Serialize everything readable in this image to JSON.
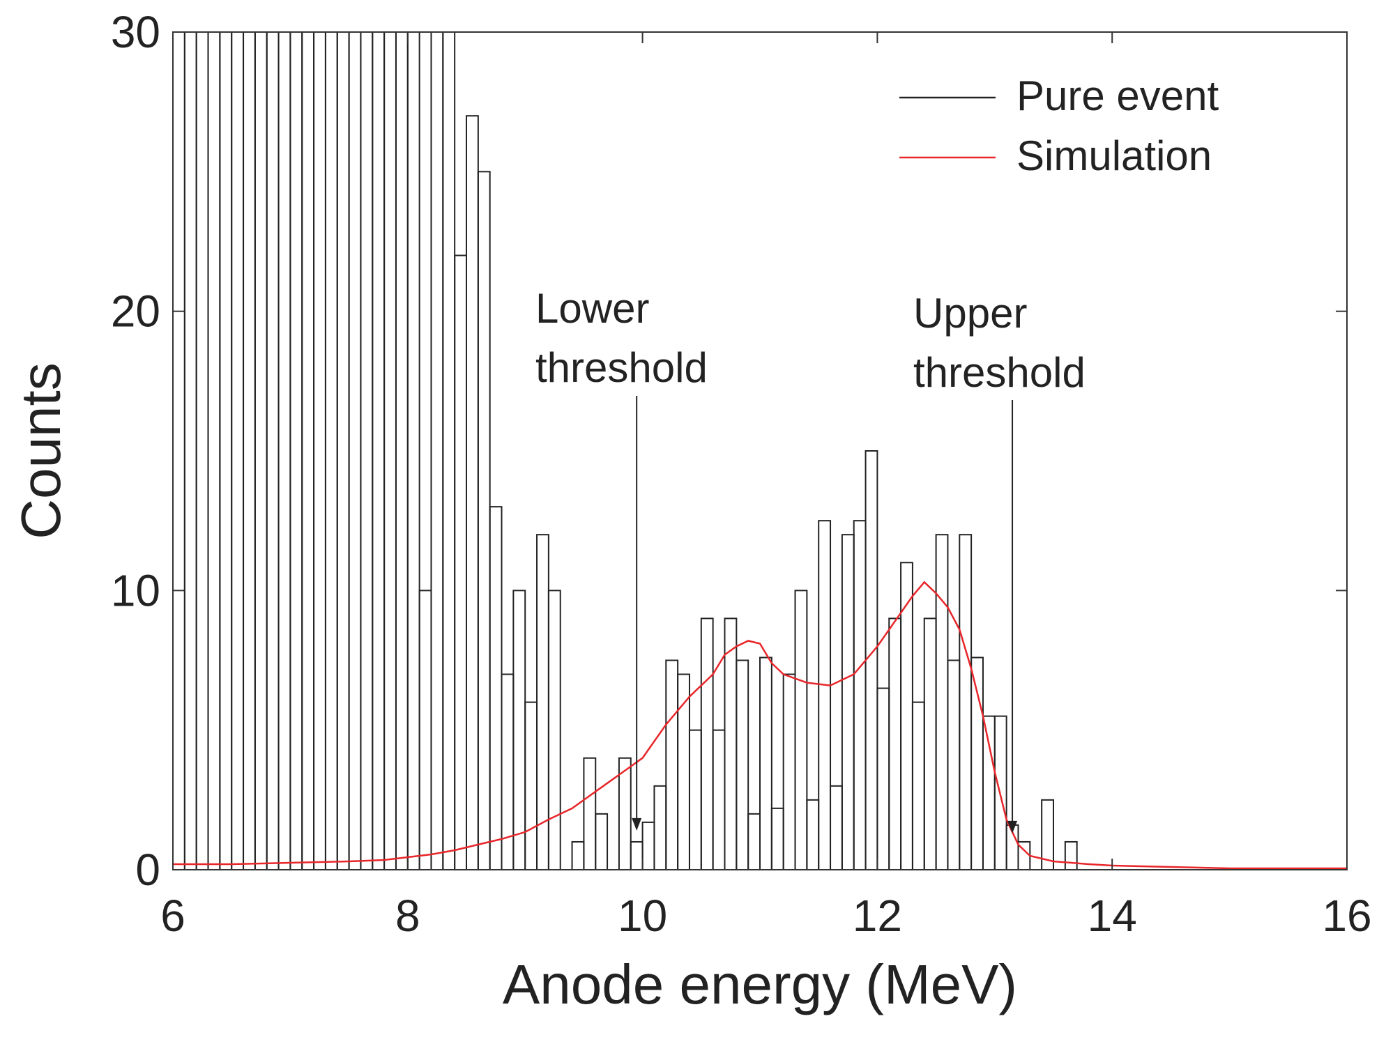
{
  "chart_data": {
    "type": "bar",
    "xlabel": "Anode energy (MeV)",
    "ylabel": "Counts",
    "xlim": [
      6,
      16
    ],
    "ylim": [
      0,
      30
    ],
    "xticks": [
      6,
      8,
      10,
      12,
      14,
      16
    ],
    "yticks": [
      0,
      10,
      20,
      30
    ],
    "grid": false,
    "legend_position": "top-right",
    "bin_width": 0.1,
    "series": [
      {
        "name": "Pure event",
        "kind": "histogram",
        "color": "#222222",
        "x": [
          6.0,
          6.1,
          6.2,
          6.3,
          6.4,
          6.5,
          6.6,
          6.7,
          6.8,
          6.9,
          7.0,
          7.1,
          7.2,
          7.3,
          7.4,
          7.5,
          7.6,
          7.7,
          7.8,
          7.9,
          8.0,
          8.1,
          8.2,
          8.3,
          8.4,
          8.5,
          8.6,
          8.7,
          8.8,
          8.9,
          9.0,
          9.1,
          9.2,
          9.3,
          9.4,
          9.5,
          9.6,
          9.7,
          9.8,
          9.9,
          10.0,
          10.1,
          10.2,
          10.3,
          10.4,
          10.5,
          10.6,
          10.7,
          10.8,
          10.9,
          11.0,
          11.1,
          11.2,
          11.3,
          11.4,
          11.5,
          11.6,
          11.7,
          11.8,
          11.9,
          12.0,
          12.1,
          12.2,
          12.3,
          12.4,
          12.5,
          12.6,
          12.7,
          12.8,
          12.9,
          13.0,
          13.1,
          13.2,
          13.3,
          13.4,
          13.5,
          13.6
        ],
        "values": [
          30,
          30,
          30,
          30,
          30,
          30,
          30,
          30,
          30,
          30,
          30,
          30,
          30,
          30,
          30,
          30,
          30,
          30,
          30,
          30,
          30,
          10,
          30,
          30,
          22,
          27,
          25,
          13,
          7,
          10,
          6,
          12,
          10,
          0,
          1,
          4,
          2,
          0,
          4,
          1,
          1.7,
          3,
          7.5,
          7,
          5,
          9,
          5,
          9,
          7.5,
          2,
          7.6,
          2.2,
          7,
          10,
          2.5,
          12.5,
          3,
          12,
          12.5,
          15,
          6.5,
          9,
          11,
          6,
          9,
          12,
          7.5,
          12,
          7.6,
          5.5,
          5.5,
          1.6,
          1,
          0,
          2.5,
          0,
          1
        ]
      },
      {
        "name": "Simulation",
        "kind": "line",
        "color": "#e8262a",
        "x": [
          6.0,
          6.5,
          7.0,
          7.5,
          7.8,
          8.0,
          8.2,
          8.4,
          8.6,
          8.8,
          9.0,
          9.2,
          9.4,
          9.6,
          9.8,
          10.0,
          10.2,
          10.4,
          10.6,
          10.7,
          10.8,
          10.9,
          11.0,
          11.1,
          11.2,
          11.4,
          11.6,
          11.8,
          12.0,
          12.2,
          12.3,
          12.4,
          12.5,
          12.6,
          12.7,
          12.8,
          12.9,
          13.0,
          13.1,
          13.2,
          13.3,
          13.5,
          13.8,
          14.0,
          14.5,
          15.0,
          16.0
        ],
        "values": [
          0.2,
          0.2,
          0.25,
          0.3,
          0.35,
          0.45,
          0.55,
          0.7,
          0.9,
          1.1,
          1.35,
          1.8,
          2.2,
          2.8,
          3.4,
          4.0,
          5.2,
          6.2,
          7.0,
          7.7,
          8.0,
          8.2,
          8.1,
          7.4,
          7.0,
          6.7,
          6.6,
          7.0,
          8.0,
          9.2,
          9.8,
          10.3,
          9.9,
          9.4,
          8.6,
          7.2,
          5.5,
          3.5,
          1.8,
          0.9,
          0.5,
          0.3,
          0.2,
          0.15,
          0.1,
          0.05,
          0.05
        ]
      }
    ],
    "annotations": [
      {
        "name": "lower-threshold",
        "lines": [
          "Lower",
          "threshold"
        ],
        "x": 9.95,
        "y_arrow_tip": 1.4
      },
      {
        "name": "upper-threshold",
        "lines": [
          "Upper",
          "threshold"
        ],
        "x": 13.15,
        "y_arrow_tip": 1.3
      }
    ]
  }
}
